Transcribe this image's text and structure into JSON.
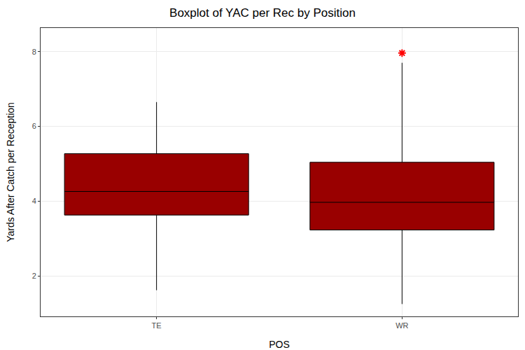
{
  "chart_data": {
    "type": "box",
    "title": "Boxplot of YAC per Rec by Position",
    "x_label": "POS",
    "y_label": "Yards After Catch per Reception",
    "categories": [
      "TE",
      "WR"
    ],
    "boxes": [
      {
        "min": 1.62,
        "q1": 3.63,
        "median": 4.26,
        "q3": 5.27,
        "max": 6.65
      },
      {
        "min": 1.25,
        "q1": 3.23,
        "median": 3.97,
        "q3": 5.04,
        "max": 7.7
      }
    ],
    "outliers": {
      "values": [
        [],
        [
          7.96
        ]
      ],
      "color": "#ff0000",
      "marker": "asterisk"
    },
    "color": "#990000",
    "ylim": [
      0.92,
      8.63
    ],
    "yticks": [
      2,
      4,
      6,
      8
    ],
    "grid": true
  }
}
